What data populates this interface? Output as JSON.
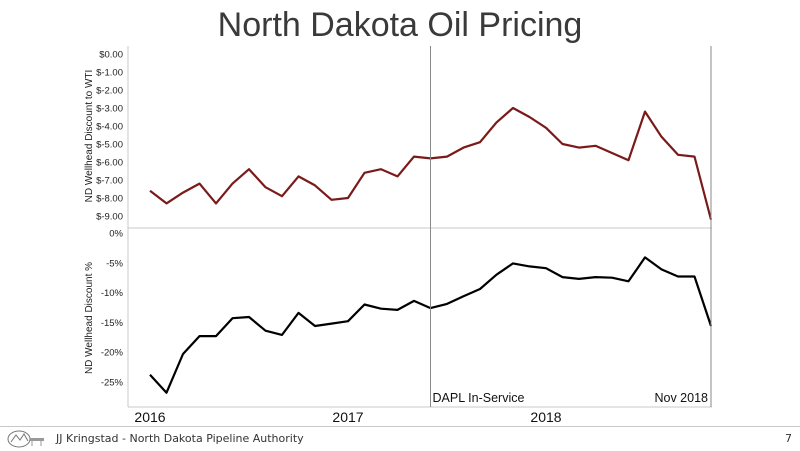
{
  "slide": {
    "title": "North Dakota Oil Pricing",
    "footer_text": "JJ Kringstad - North Dakota Pipeline Authority",
    "page_number": "7"
  },
  "colors": {
    "top_series": "#7a1a1a",
    "bottom_series": "#000000",
    "vline": "#8a8a8a"
  },
  "chart_data": [
    {
      "type": "line",
      "ylabel": "ND Wellhead Discount to WTI",
      "ylim": [
        -9.5,
        0
      ],
      "yticks": [
        0,
        -1,
        -2,
        -3,
        -4,
        -5,
        -6,
        -7,
        -8,
        -9
      ],
      "ytick_labels": [
        "$0.00",
        "$-1.00",
        "$-2.00",
        "$-3.00",
        "$-4.00",
        "$-5.00",
        "$-6.00",
        "$-7.00",
        "$-8.00",
        "$-9.00"
      ],
      "x_start": "2016-01",
      "series": [
        {
          "values": [
            -7.6,
            -8.3,
            -7.7,
            -7.2,
            -8.3,
            -7.2,
            -6.4,
            -7.4,
            -7.9,
            -6.8,
            -7.3,
            -8.1,
            -8.0,
            -6.6,
            -6.4,
            -6.8,
            -5.7,
            -5.8,
            -5.7,
            -5.2,
            -4.9,
            -3.8,
            -3.0,
            -3.5,
            -4.1,
            -5.0,
            -5.2,
            -5.1,
            -5.5,
            -5.9,
            -3.2,
            -4.6,
            -5.6,
            -5.7,
            -9.2
          ]
        }
      ]
    },
    {
      "type": "line",
      "ylabel": "ND Wellhead Discount %",
      "ylim": [
        -28,
        0
      ],
      "yticks": [
        0,
        -5,
        -10,
        -15,
        -20,
        -25
      ],
      "ytick_labels": [
        "0%",
        "-5%",
        "-10%",
        "-15%",
        "-20%",
        "-25%"
      ],
      "x_start": "2016-01",
      "series": [
        {
          "values": [
            -23.8,
            -26.8,
            -20.3,
            -17.3,
            -17.3,
            -14.3,
            -14.1,
            -16.4,
            -17.1,
            -13.4,
            -15.6,
            -15.2,
            -14.8,
            -12.0,
            -12.7,
            -12.9,
            -11.4,
            -12.6,
            -11.9,
            -10.6,
            -9.4,
            -7.0,
            -5.1,
            -5.6,
            -5.9,
            -7.4,
            -7.7,
            -7.4,
            -7.5,
            -8.1,
            -4.1,
            -6.1,
            -7.3,
            -7.3,
            -15.6
          ]
        }
      ]
    }
  ],
  "x_axis": {
    "year_labels": [
      "2016",
      "2017",
      "2018"
    ],
    "year_label_index": [
      0,
      12,
      24
    ]
  },
  "annotations": [
    {
      "text": "DAPL In-Service",
      "x_index": 17.0
    },
    {
      "text": "Nov 2018",
      "x_index": 34.0
    }
  ]
}
